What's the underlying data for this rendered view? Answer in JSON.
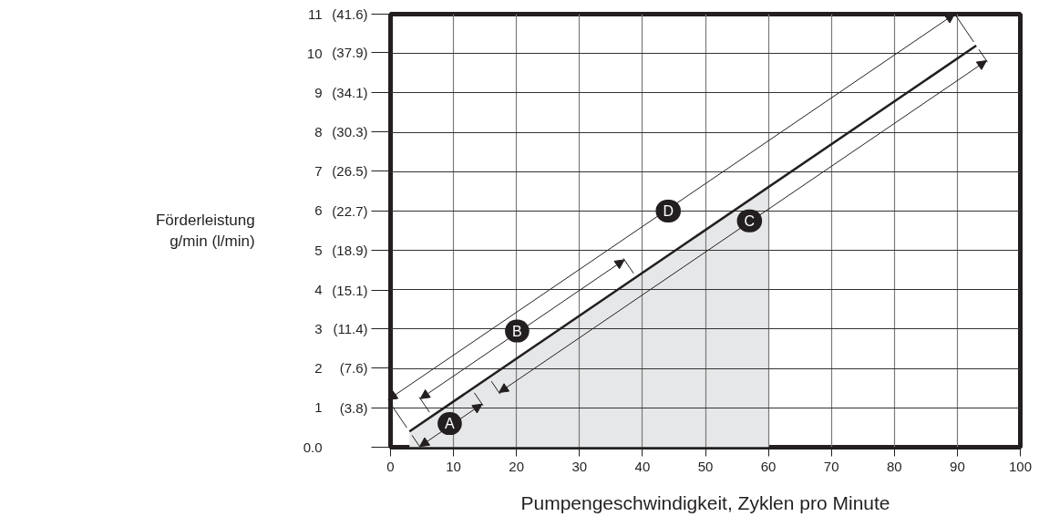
{
  "chart_data": {
    "type": "line",
    "xlabel": "Pumpengeschwindigkeit, Zyklen pro Minute",
    "ylabel": "Förderleistung\ng/min (l/min)",
    "xlim": [
      0,
      100
    ],
    "ylim": [
      0,
      11
    ],
    "y2lim": [
      0,
      41.6
    ],
    "xticks": [
      0,
      10,
      20,
      30,
      40,
      50,
      60,
      70,
      80,
      90,
      100
    ],
    "yticks": [
      {
        "value": 0,
        "label": "0.0"
      },
      1,
      2,
      3,
      4,
      5,
      6,
      7,
      8,
      9,
      10,
      11
    ],
    "y2ticks": [
      {
        "value": 0,
        "label": null
      },
      {
        "value": 3.8,
        "label": "(3.8)"
      },
      {
        "value": 7.6,
        "label": "(7.6)"
      },
      {
        "value": 11.4,
        "label": "(11.4)"
      },
      {
        "value": 15.1,
        "label": "(15.1)"
      },
      {
        "value": 18.9,
        "label": "(18.9)"
      },
      {
        "value": 22.7,
        "label": "(22.7)"
      },
      {
        "value": 26.5,
        "label": "(26.5)"
      },
      {
        "value": 30.3,
        "label": "(30.3)"
      },
      {
        "value": 34.1,
        "label": "(34.1)"
      },
      {
        "value": 37.9,
        "label": "(37.9)"
      },
      {
        "value": 41.6,
        "label": "(41.6)"
      }
    ],
    "series": [
      {
        "type": "area",
        "color": "#e6e7e8",
        "x": [
          3,
          60
        ],
        "values": [
          0.4,
          6.6
        ]
      },
      {
        "color": "#231f20",
        "x": [
          3,
          93
        ],
        "values": [
          0.4,
          10.2
        ]
      }
    ],
    "annotations": [
      {
        "text": "A",
        "x": 9.4,
        "y": 0.6
      },
      {
        "text": "B",
        "x": 20.1,
        "y": 2.95
      },
      {
        "text": "C",
        "x": 57.0,
        "y": 5.75
      },
      {
        "text": "D",
        "x": 44.1,
        "y": 6.0
      }
    ],
    "grid": true
  }
}
